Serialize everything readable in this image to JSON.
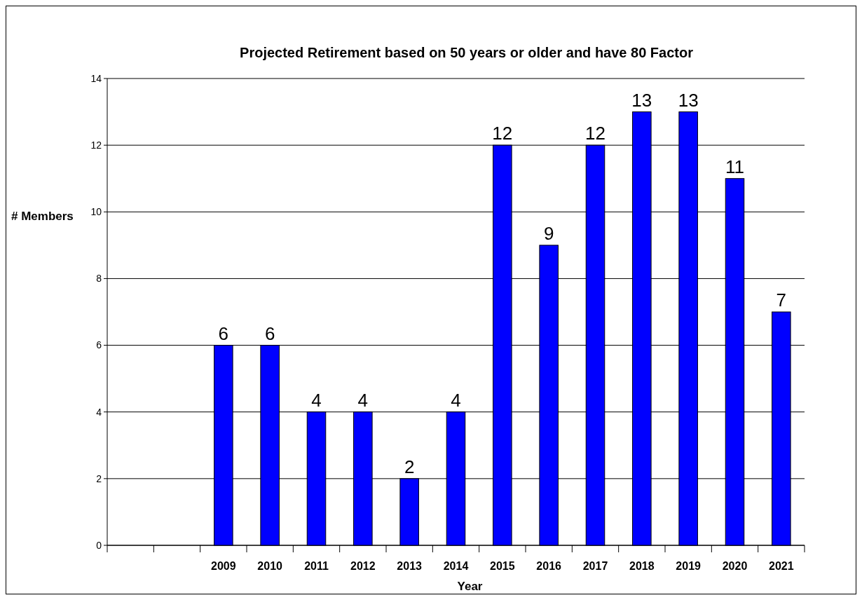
{
  "chart_data": {
    "type": "bar",
    "title": "Projected Retirement based on 50 years or older and have 80 Factor",
    "xlabel": "Year",
    "ylabel": "# Members",
    "categories": [
      null,
      null,
      "2009",
      "2010",
      "2011",
      "2012",
      "2013",
      "2014",
      "2015",
      "2016",
      "2017",
      "2018",
      "2019",
      "2020",
      "2021"
    ],
    "values": [
      null,
      null,
      6,
      6,
      4,
      4,
      2,
      4,
      12,
      9,
      12,
      13,
      13,
      11,
      7
    ],
    "color": "#0000ff",
    "ylim": [
      0,
      14
    ],
    "yticks": [
      0,
      2,
      4,
      6,
      8,
      10,
      12,
      14
    ],
    "grid": "y",
    "data_labels": true
  }
}
